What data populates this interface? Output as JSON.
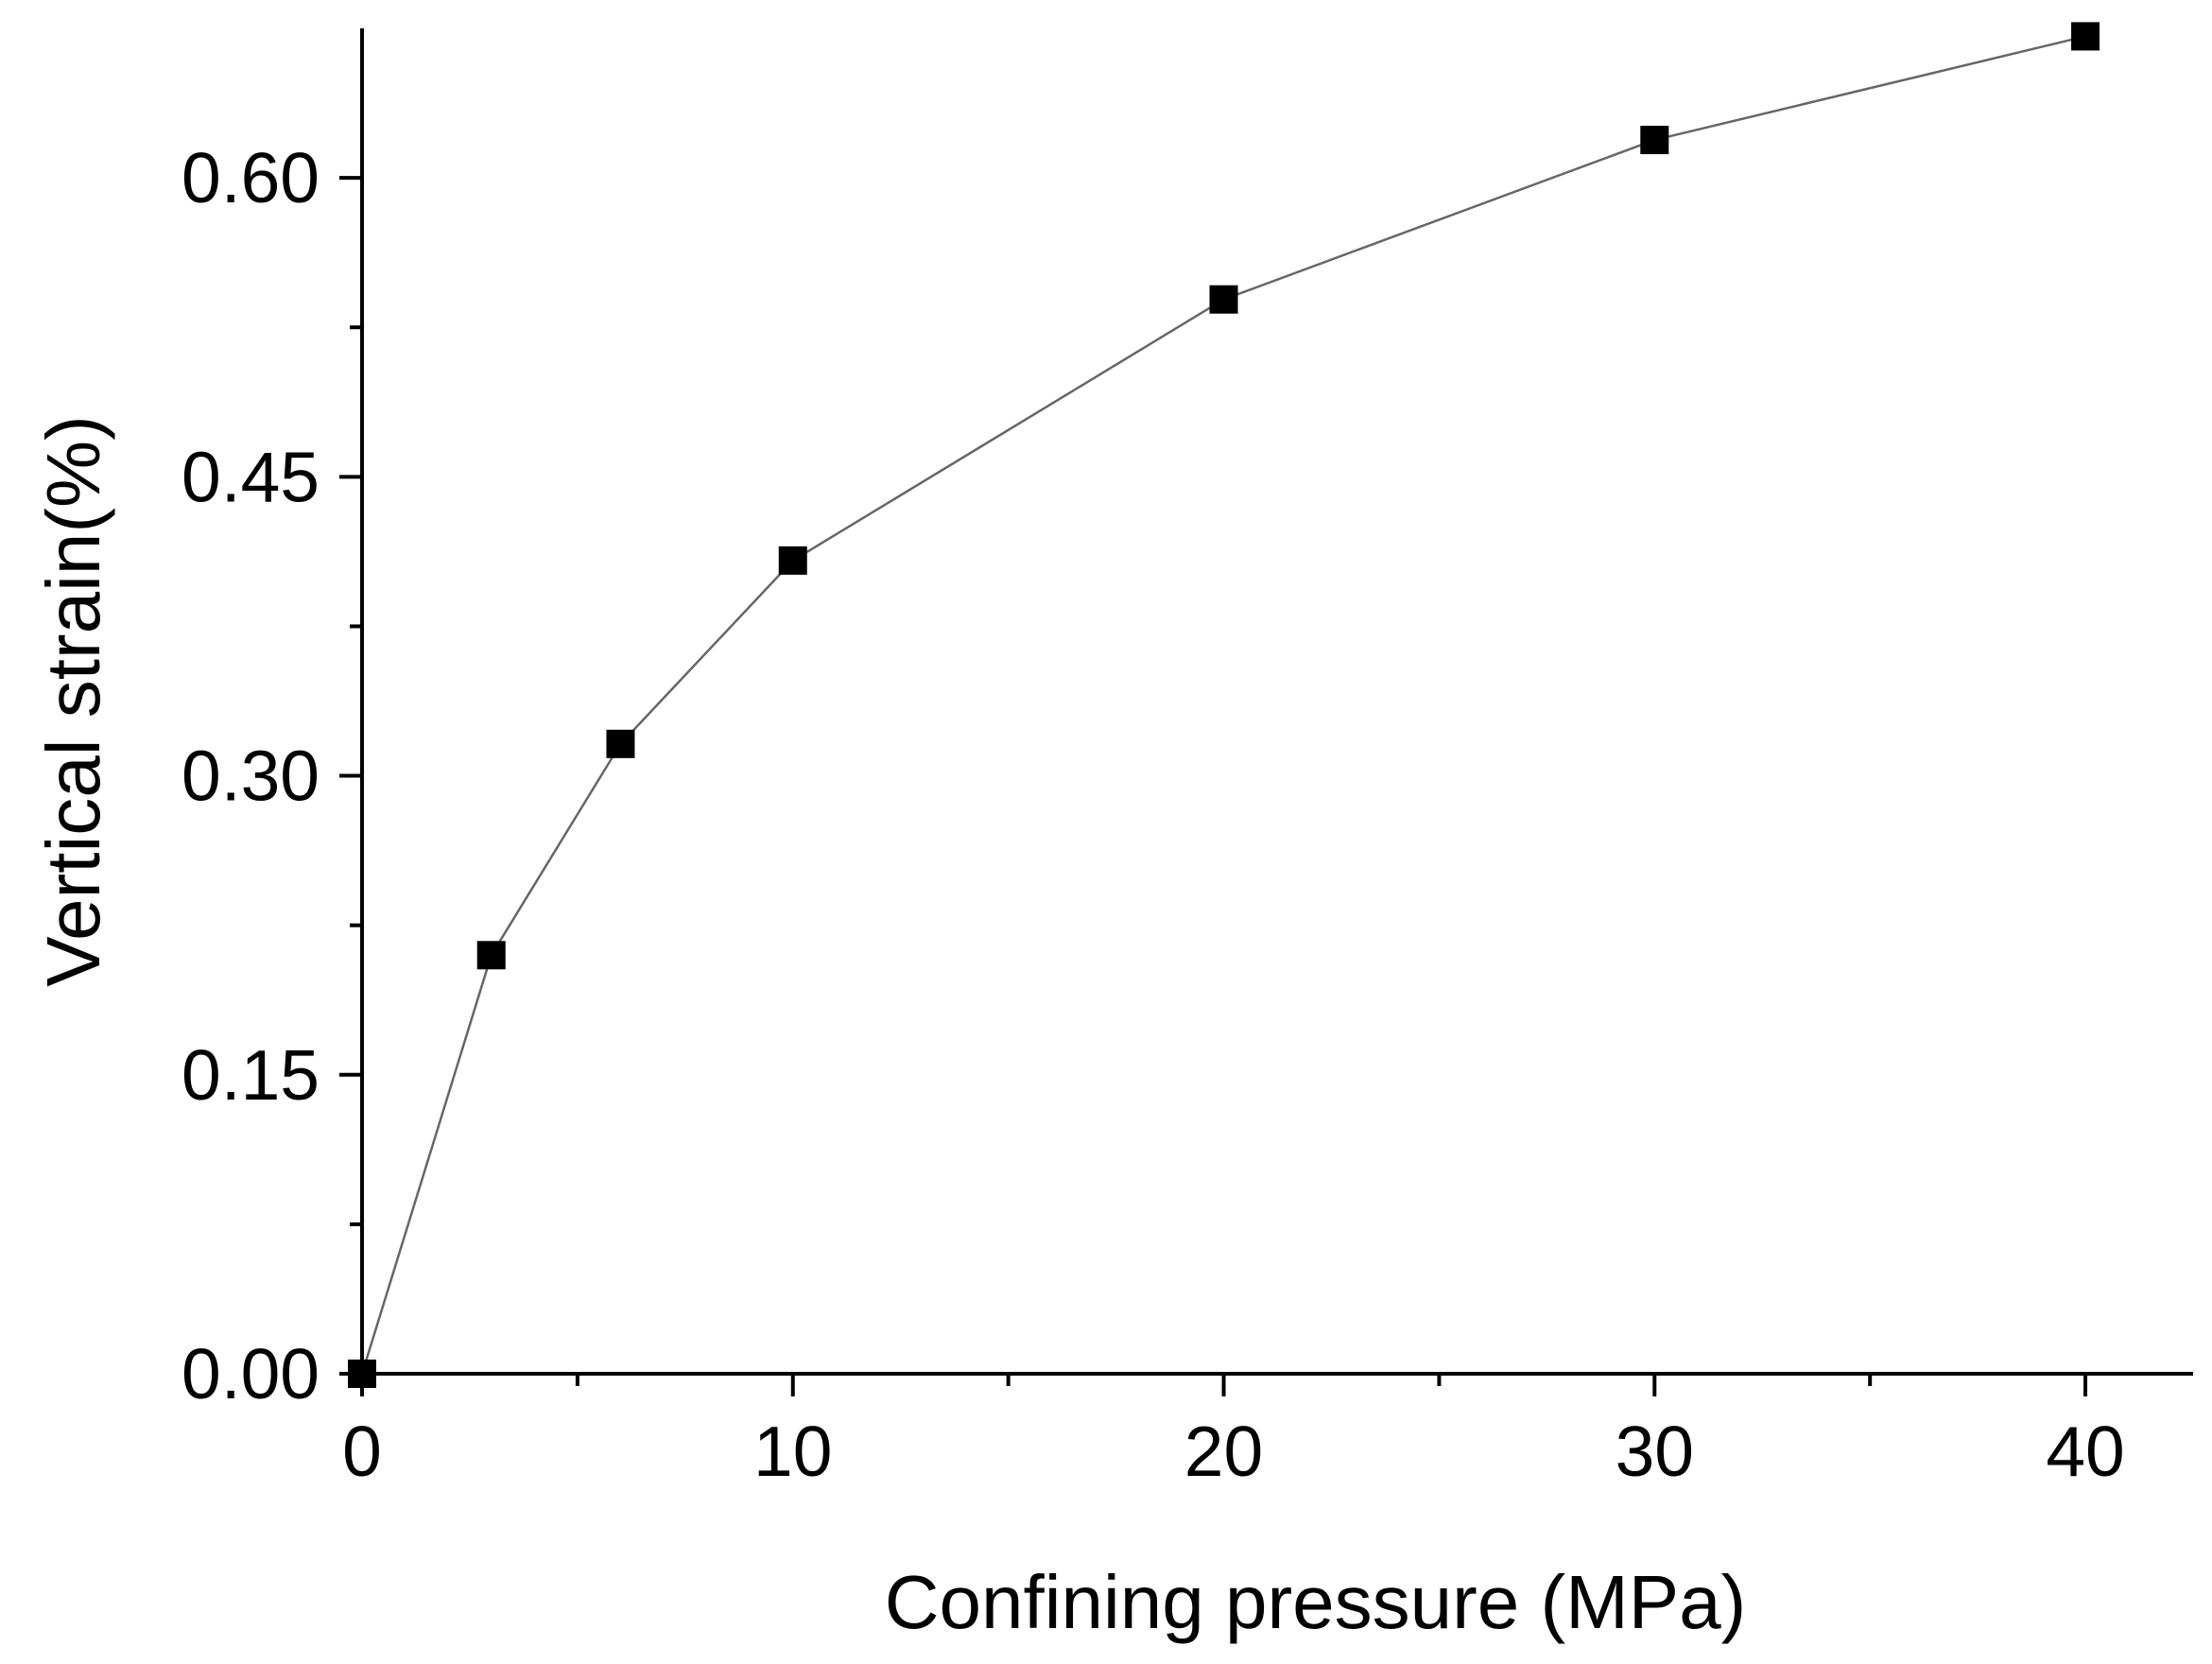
{
  "chart_data": {
    "type": "line",
    "title": "",
    "xlabel": "Confining pressure (MPa)",
    "ylabel": "Vertical strain(%)",
    "xlim": [
      0,
      42.5
    ],
    "ylim": [
      0,
      0.675
    ],
    "x_ticks": [
      {
        "value": 0,
        "label": "0"
      },
      {
        "value": 10,
        "label": "10"
      },
      {
        "value": 20,
        "label": "20"
      },
      {
        "value": 30,
        "label": "30"
      },
      {
        "value": 40,
        "label": "40"
      }
    ],
    "x_minor_ticks": [
      5,
      15,
      25,
      35
    ],
    "y_ticks": [
      {
        "value": 0,
        "label": "0.00"
      },
      {
        "value": 0.15,
        "label": "0.15"
      },
      {
        "value": 0.3,
        "label": "0.30"
      },
      {
        "value": 0.45,
        "label": "0.45"
      },
      {
        "value": 0.6,
        "label": "0.60"
      }
    ],
    "y_minor_ticks": [
      0.075,
      0.225,
      0.375,
      0.525
    ],
    "grid": false,
    "series": [
      {
        "name": "Vertical strain",
        "marker": "square",
        "color": "#000000",
        "line_color": "#666666",
        "x": [
          0,
          3,
          6,
          10,
          20,
          30,
          40
        ],
        "y": [
          0.0,
          0.21,
          0.316,
          0.408,
          0.539,
          0.619,
          0.671
        ]
      }
    ]
  }
}
